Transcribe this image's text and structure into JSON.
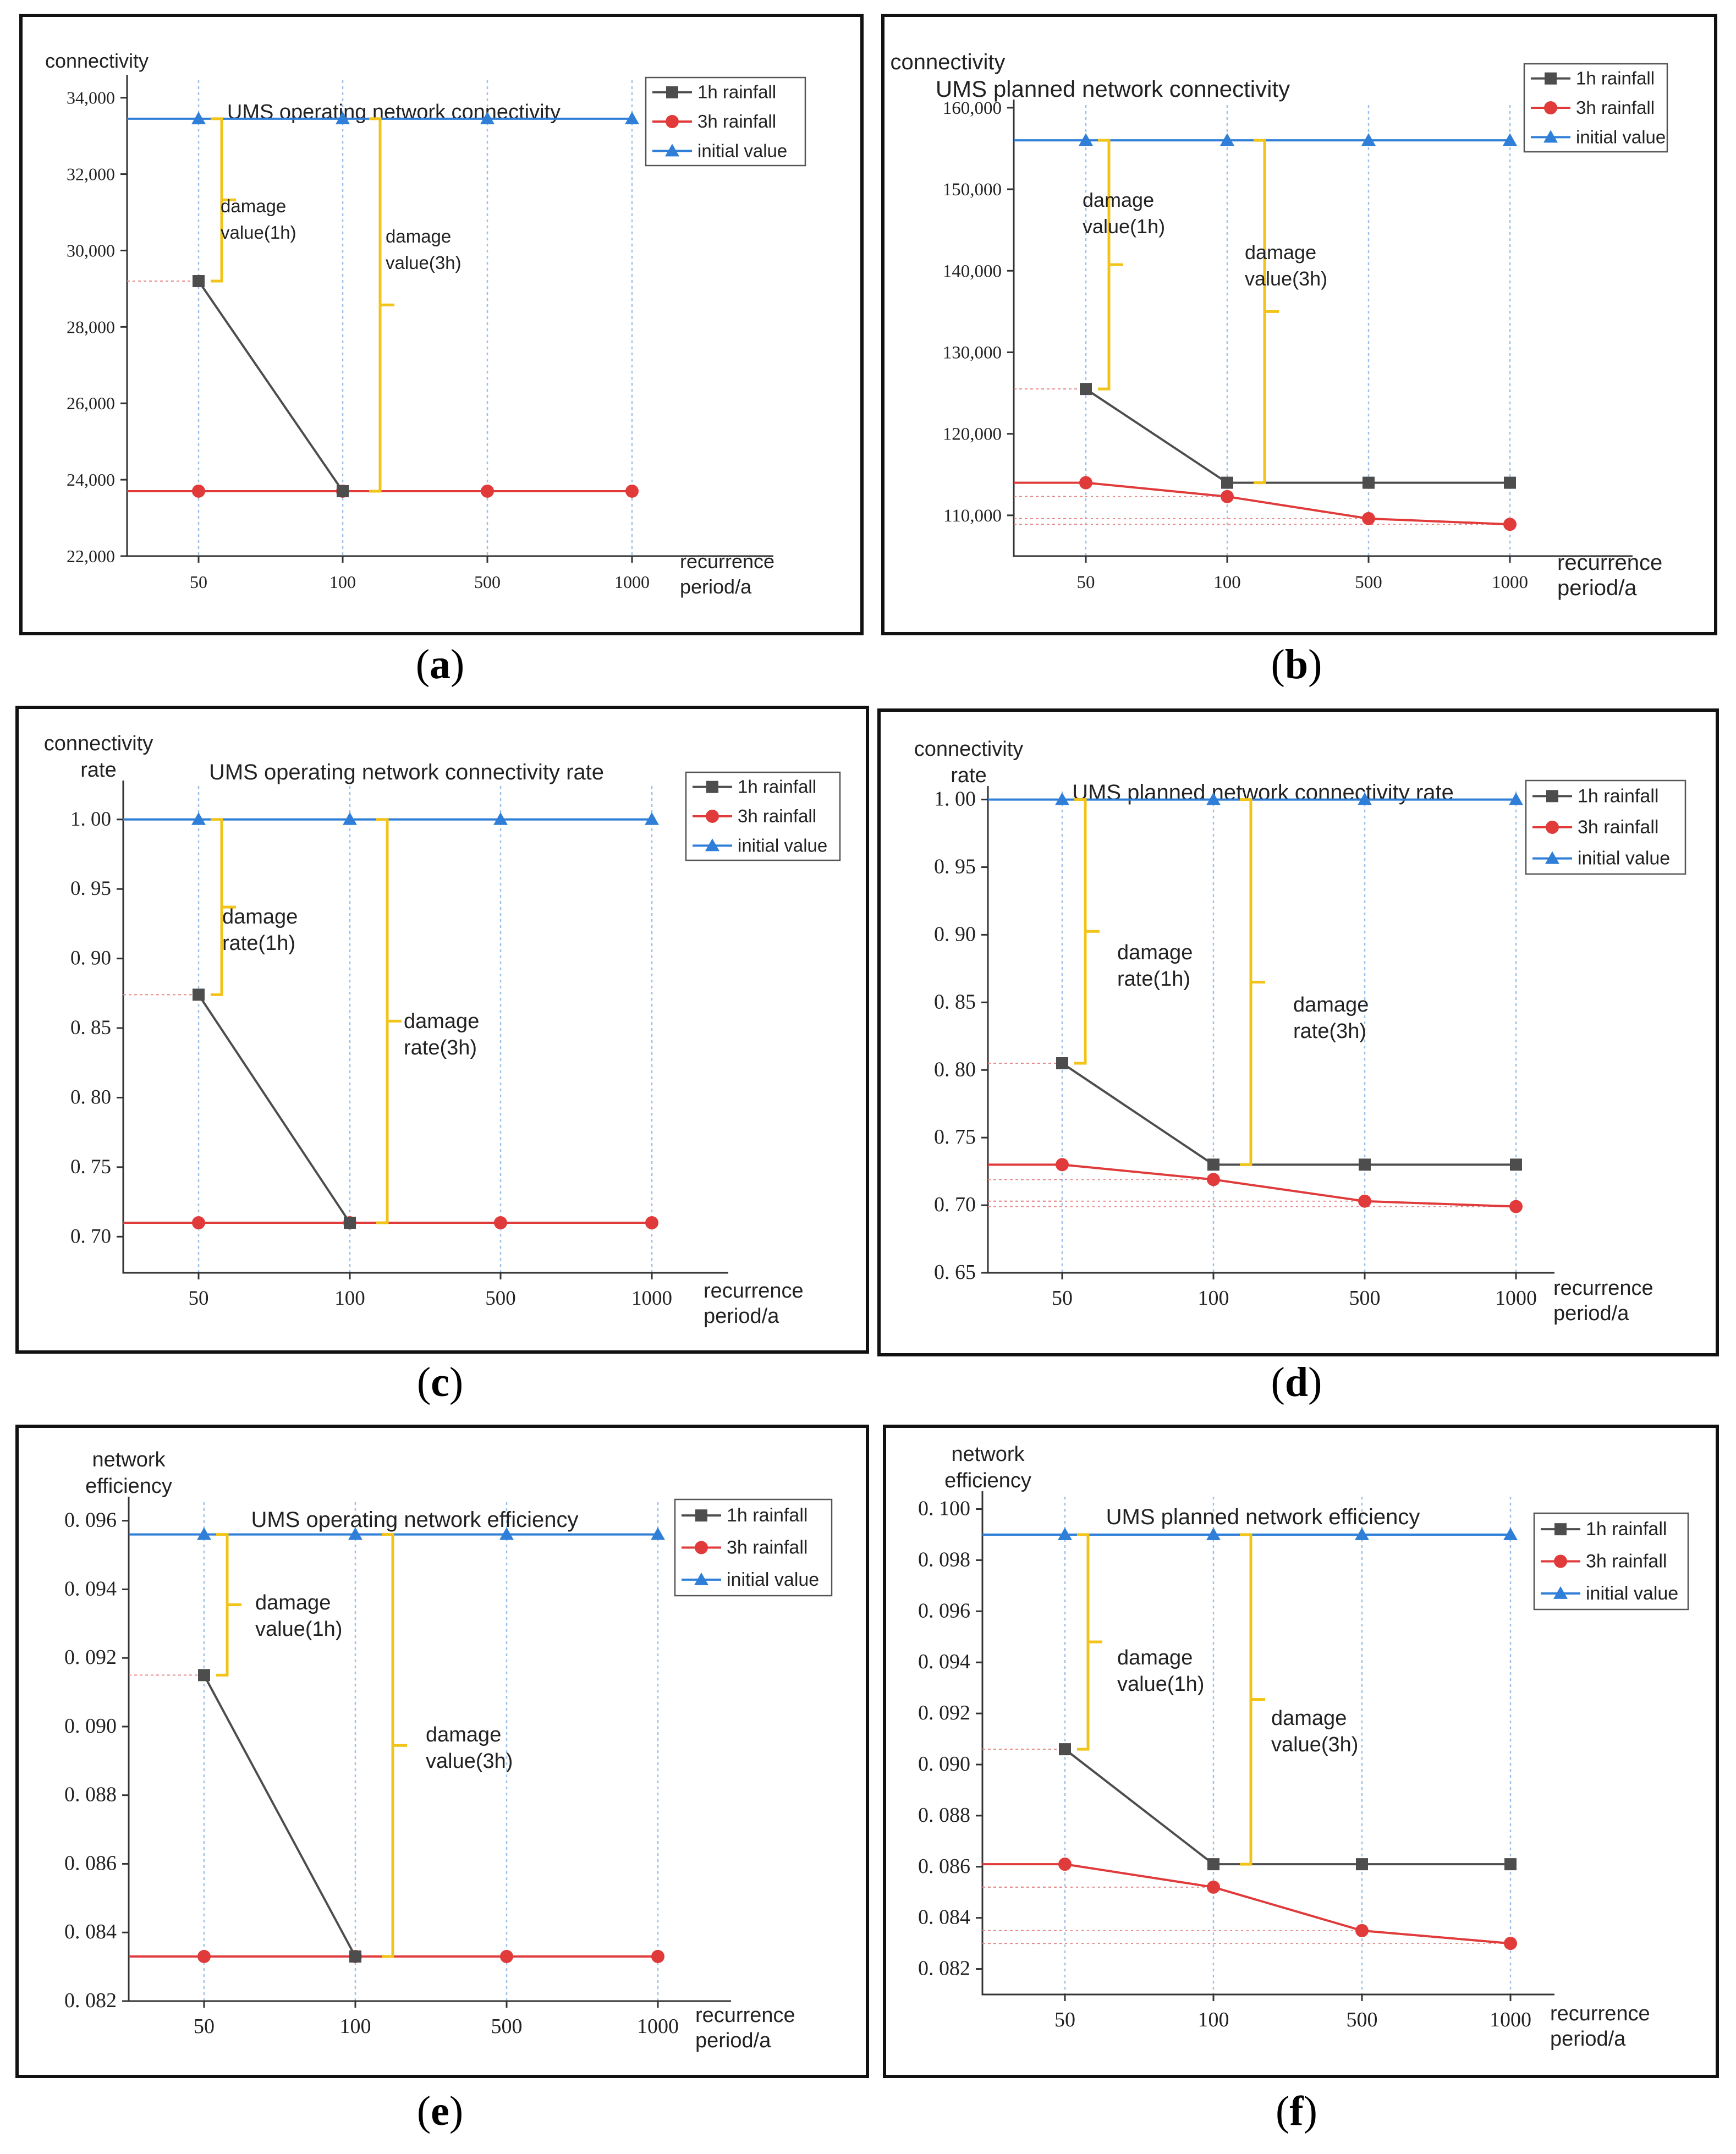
{
  "figure": {
    "captions": [
      "a",
      "b",
      "c",
      "d",
      "e",
      "f"
    ],
    "colors": {
      "series_1h": "#4d4d4d",
      "series_3h": "#e03a3a",
      "initial": "#2f7fd8",
      "bracket": "#f2c318",
      "grid": "#9cc0e8"
    }
  },
  "chart_data": [
    {
      "type": "line",
      "title": "UMS operating network connectivity",
      "ylabel": "connectivity",
      "xlabel": "recurrence period/a",
      "categories": [
        "50",
        "100",
        "500",
        "1000"
      ],
      "ylim": [
        22000,
        34600
      ],
      "yticks": [
        22000,
        24000,
        26000,
        28000,
        30000,
        32000,
        34000
      ],
      "ytick_labels": [
        "22,000",
        "24,000",
        "26,000",
        "28,000",
        "30,000",
        "32,000",
        "34,000"
      ],
      "series": [
        {
          "name": "1h rainfall",
          "values": [
            29200,
            23700,
            null,
            null
          ]
        },
        {
          "name": "3h rainfall",
          "values": [
            23700,
            23700,
            23700,
            23700
          ]
        },
        {
          "name": "initial value",
          "values": [
            33450,
            33450,
            33450,
            33450
          ]
        }
      ],
      "brackets": [
        {
          "label": "damage value(1h)",
          "lines": [
            "damage",
            "value(1h)"
          ]
        },
        {
          "label": "damage value(3h)",
          "lines": [
            "damage",
            "value(3h)"
          ]
        }
      ]
    },
    {
      "type": "line",
      "title": "UMS planned network connectivity",
      "ylabel": "connectivity",
      "xlabel": "recurrence period/a",
      "categories": [
        "50",
        "100",
        "500",
        "1000"
      ],
      "ylim": [
        105000,
        161000
      ],
      "yticks": [
        110000,
        120000,
        130000,
        140000,
        150000,
        160000
      ],
      "ytick_labels": [
        "110,000",
        "120,000",
        "130,000",
        "140,000",
        "150,000",
        "160,000"
      ],
      "series": [
        {
          "name": "1h rainfall",
          "values": [
            125500,
            114000,
            114000,
            114000
          ]
        },
        {
          "name": "3h rainfall",
          "values": [
            114000,
            112300,
            109600,
            108900
          ]
        },
        {
          "name": "initial value",
          "values": [
            156000,
            156000,
            156000,
            156000
          ]
        }
      ],
      "brackets": [
        {
          "label": "damage value(1h)",
          "lines": [
            "damage",
            "value(1h)"
          ]
        },
        {
          "label": "damage value(3h)",
          "lines": [
            "damage",
            "value(3h)"
          ]
        }
      ]
    },
    {
      "type": "line",
      "title": "UMS operating network connectivity rate",
      "ylabel": "connectivity rate",
      "ylabel_lines": [
        "connectivity",
        "rate"
      ],
      "xlabel": "recurrence period/a",
      "categories": [
        "50",
        "100",
        "500",
        "1000"
      ],
      "ylim": [
        0.674,
        1.028
      ],
      "yticks": [
        0.7,
        0.75,
        0.8,
        0.85,
        0.9,
        0.95,
        1.0
      ],
      "ytick_labels": [
        "0. 70",
        "0. 75",
        "0. 80",
        "0. 85",
        "0. 90",
        "0. 95",
        "1. 00"
      ],
      "series": [
        {
          "name": "1h rainfall",
          "values": [
            0.874,
            0.71,
            null,
            null
          ]
        },
        {
          "name": "3h rainfall",
          "values": [
            0.71,
            0.71,
            0.71,
            0.71
          ]
        },
        {
          "name": "initial value",
          "values": [
            1.0,
            1.0,
            1.0,
            1.0
          ]
        }
      ],
      "brackets": [
        {
          "label": "damage rate(1h)",
          "lines": [
            "damage",
            "rate(1h)"
          ]
        },
        {
          "label": "damage rate(3h)",
          "lines": [
            "damage",
            "rate(3h)"
          ]
        }
      ]
    },
    {
      "type": "line",
      "title": "UMS planned network connectivity rate",
      "ylabel": "connectivity rate",
      "ylabel_lines": [
        "connectivity",
        "rate"
      ],
      "xlabel": "recurrence period/a",
      "categories": [
        "50",
        "100",
        "500",
        "1000"
      ],
      "ylim": [
        0.65,
        1.01
      ],
      "yticks": [
        0.65,
        0.7,
        0.75,
        0.8,
        0.85,
        0.9,
        0.95,
        1.0
      ],
      "ytick_labels": [
        "0. 65",
        "0. 70",
        "0. 75",
        "0. 80",
        "0. 85",
        "0. 90",
        "0. 95",
        "1. 00"
      ],
      "series": [
        {
          "name": "1h rainfall",
          "values": [
            0.805,
            0.73,
            0.73,
            0.73
          ]
        },
        {
          "name": "3h rainfall",
          "values": [
            0.73,
            0.719,
            0.703,
            0.699
          ]
        },
        {
          "name": "initial value",
          "values": [
            1.0,
            1.0,
            1.0,
            1.0
          ]
        }
      ],
      "brackets": [
        {
          "label": "damage rate(1h)",
          "lines": [
            "damage",
            "rate(1h)"
          ]
        },
        {
          "label": "damage rate(3h)",
          "lines": [
            "damage",
            "rate(3h)"
          ]
        }
      ]
    },
    {
      "type": "line",
      "title": "UMS operating network efficiency",
      "ylabel": "network efficiency",
      "ylabel_lines": [
        "network",
        "efficiency"
      ],
      "xlabel": "recurrence period/a",
      "categories": [
        "50",
        "100",
        "500",
        "1000"
      ],
      "ylim": [
        0.082,
        0.0967
      ],
      "yticks": [
        0.082,
        0.084,
        0.086,
        0.088,
        0.09,
        0.092,
        0.094,
        0.096
      ],
      "ytick_labels": [
        "0. 082",
        "0. 084",
        "0. 086",
        "0. 088",
        "0. 090",
        "0. 092",
        "0. 094",
        "0. 096"
      ],
      "series": [
        {
          "name": "1h rainfall",
          "values": [
            0.0915,
            0.0833,
            null,
            null
          ]
        },
        {
          "name": "3h rainfall",
          "values": [
            0.0833,
            0.0833,
            0.0833,
            0.0833
          ]
        },
        {
          "name": "initial value",
          "values": [
            0.0956,
            0.0956,
            0.0956,
            0.0956
          ]
        }
      ],
      "brackets": [
        {
          "label": "damage value(1h)",
          "lines": [
            "damage",
            "value(1h)"
          ]
        },
        {
          "label": "damage value(3h)",
          "lines": [
            "damage",
            "value(3h)"
          ]
        }
      ]
    },
    {
      "type": "line",
      "title": "UMS planned network efficiency",
      "ylabel": "network efficiency",
      "ylabel_lines": [
        "network",
        "efficiency"
      ],
      "xlabel": "recurrence period/a",
      "categories": [
        "50",
        "100",
        "500",
        "1000"
      ],
      "ylim": [
        0.081,
        0.1007
      ],
      "yticks": [
        0.082,
        0.084,
        0.086,
        0.088,
        0.09,
        0.092,
        0.094,
        0.096,
        0.098,
        0.1
      ],
      "ytick_labels": [
        "0. 082",
        "0. 084",
        "0. 086",
        "0. 088",
        "0. 090",
        "0. 092",
        "0. 094",
        "0. 096",
        "0. 098",
        "0. 100"
      ],
      "series": [
        {
          "name": "1h rainfall",
          "values": [
            0.0906,
            0.0861,
            0.0861,
            0.0861
          ]
        },
        {
          "name": "3h rainfall",
          "values": [
            0.0861,
            0.0852,
            0.0835,
            0.083
          ]
        },
        {
          "name": "initial value",
          "values": [
            0.099,
            0.099,
            0.099,
            0.099
          ]
        }
      ],
      "brackets": [
        {
          "label": "damage value(1h)",
          "lines": [
            "damage",
            "value(1h)"
          ]
        },
        {
          "label": "damage value(3h)",
          "lines": [
            "damage",
            "value(3h)"
          ]
        }
      ]
    }
  ]
}
